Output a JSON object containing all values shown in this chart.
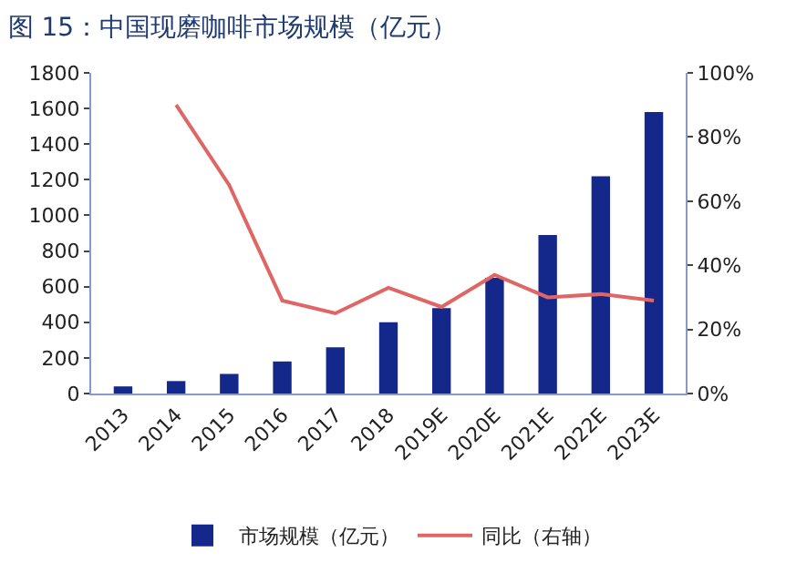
{
  "chart_data": {
    "type": "bar",
    "title": "图 15：中国现磨咖啡市场规模（亿元）",
    "categories": [
      "2013",
      "2014",
      "2015",
      "2016",
      "2017",
      "2018",
      "2019E",
      "2020E",
      "2021E",
      "2022E",
      "2023E"
    ],
    "series": [
      {
        "name": "市场规模（亿元）",
        "color": "#14288c",
        "values": [
          40,
          70,
          110,
          180,
          260,
          400,
          480,
          650,
          890,
          1220,
          1580
        ]
      },
      {
        "name": "同比（右轴）",
        "type": "line",
        "color": "#e06666",
        "axis": "y2",
        "values": [
          null,
          90,
          65,
          29,
          25,
          33,
          27,
          37,
          30,
          31,
          29
        ]
      }
    ],
    "ylim": [
      0,
      1800
    ],
    "yticks": [
      0,
      200,
      400,
      600,
      800,
      1000,
      1200,
      1400,
      1600,
      1800
    ],
    "y2lim": [
      0,
      100
    ],
    "y2ticks": [
      {
        "value": 0,
        "label": "0%"
      },
      {
        "value": 20,
        "label": "20%"
      },
      {
        "value": 40,
        "label": "40%"
      },
      {
        "value": 60,
        "label": "60%"
      },
      {
        "value": 80,
        "label": "80%"
      },
      {
        "value": 100,
        "label": "100%"
      }
    ],
    "grid": false,
    "legend": "bottom",
    "marker": "none",
    "line_style": "solid"
  }
}
